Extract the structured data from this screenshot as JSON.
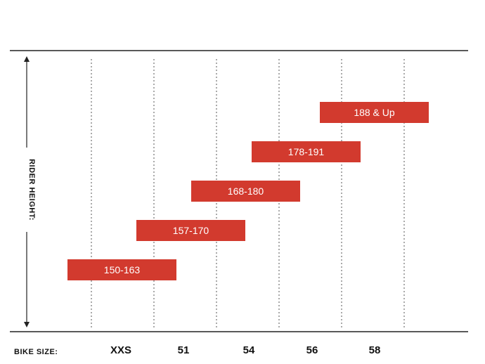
{
  "chart_data": {
    "type": "bar",
    "orientation": "horizontal-range",
    "title": "",
    "ylabel": "RIDER HEIGHT:",
    "xlabel": "BIKE SIZE:",
    "categories": [
      "XXS",
      "51",
      "54",
      "56",
      "58"
    ],
    "bars": [
      {
        "label": "150-163",
        "from": "XXS",
        "to": "51"
      },
      {
        "label": "157-170",
        "from": "51",
        "to": "54"
      },
      {
        "label": "168-180",
        "from": "54",
        "to": "56"
      },
      {
        "label": "178-191",
        "from": "56",
        "to": "58"
      },
      {
        "label": "188 & Up",
        "from": "58",
        "to": ""
      }
    ],
    "grid": true,
    "bar_color": "#d23a2e"
  }
}
